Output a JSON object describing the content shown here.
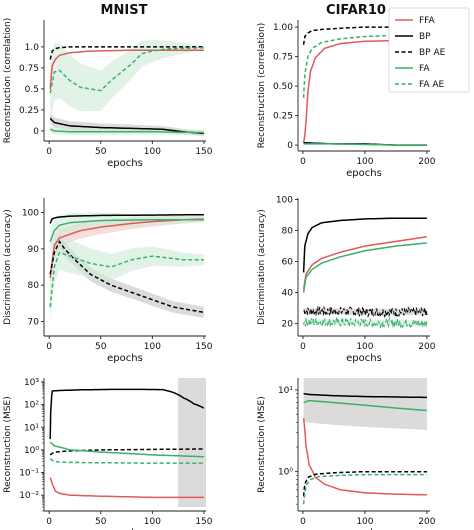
{
  "figure": {
    "col_titles": [
      "MNIST",
      "CIFAR10"
    ],
    "legend": [
      {
        "name": "FFA",
        "color": "#e05a5a",
        "dash": "solid"
      },
      {
        "name": "BP",
        "color": "#000000",
        "dash": "solid"
      },
      {
        "name": "BP AE",
        "color": "#000000",
        "dash": "dashed"
      },
      {
        "name": "FA",
        "color": "#3cb06a",
        "dash": "solid"
      },
      {
        "name": "FA AE",
        "color": "#3cb06a",
        "dash": "dashed"
      }
    ],
    "colors": {
      "FFA": "#e05a5a",
      "BP": "#000000",
      "FA": "#3cb06a",
      "band_gray": "#bdbdbd",
      "band_green": "#cdebd7",
      "band_red": "#f4c7c7"
    }
  },
  "chart_data": [
    {
      "type": "line",
      "panel": "mnist-correlation",
      "title": "MNIST",
      "xlabel": "epochs",
      "ylabel": "Reconstruction (correlation)",
      "xlim": [
        -5,
        152
      ],
      "ylim": [
        -0.12,
        1.32
      ],
      "yscale": "linear",
      "xticks": [
        0,
        50,
        100,
        150
      ],
      "yticks": [
        0,
        0.25,
        0.5,
        0.75,
        1.0
      ],
      "yticklabels": [
        "0",
        "0.25",
        "0.5",
        "0.75",
        "1.0"
      ],
      "series": [
        {
          "name": "FFA",
          "color": "#e05a5a",
          "dash": "solid",
          "x": [
            1,
            3,
            6,
            10,
            20,
            40,
            80,
            150
          ],
          "y": [
            0.5,
            0.78,
            0.85,
            0.9,
            0.93,
            0.95,
            0.96,
            0.96
          ]
        },
        {
          "name": "BP",
          "color": "#000000",
          "dash": "solid",
          "x": [
            1,
            5,
            20,
            50,
            80,
            110,
            130,
            150
          ],
          "y": [
            0.15,
            0.1,
            0.06,
            0.04,
            0.03,
            0.02,
            -0.01,
            -0.03
          ],
          "band": [
            0.06,
            0.03
          ]
        },
        {
          "name": "BP AE",
          "color": "#000000",
          "dash": "dashed",
          "x": [
            1,
            3,
            6,
            10,
            20,
            40,
            150
          ],
          "y": [
            0.85,
            0.95,
            0.98,
            0.99,
            1.0,
            1.0,
            1.0
          ]
        },
        {
          "name": "FA",
          "color": "#3cb06a",
          "dash": "solid",
          "x": [
            1,
            5,
            20,
            50,
            100,
            150
          ],
          "y": [
            0.02,
            0.0,
            -0.01,
            -0.01,
            -0.01,
            -0.02
          ],
          "band": [
            0.04,
            0.03
          ]
        },
        {
          "name": "FA AE",
          "color": "#3cb06a",
          "dash": "dashed",
          "x": [
            1,
            5,
            10,
            20,
            30,
            40,
            50,
            60,
            70,
            80,
            90,
            100,
            110,
            120,
            150
          ],
          "y": [
            0.45,
            0.7,
            0.72,
            0.6,
            0.52,
            0.5,
            0.48,
            0.6,
            0.7,
            0.8,
            0.92,
            0.95,
            0.97,
            0.98,
            0.99
          ],
          "band": [
            0.35,
            0.02
          ]
        }
      ]
    },
    {
      "type": "line",
      "panel": "cifar-correlation",
      "title": "CIFAR10",
      "xlabel": "epochs",
      "ylabel": "Reconstruction (correlation)",
      "xlim": [
        -8,
        205
      ],
      "ylim": [
        -0.05,
        1.06
      ],
      "yscale": "linear",
      "xticks": [
        0,
        100,
        200
      ],
      "yticks": [
        0,
        0.25,
        0.5,
        0.75,
        1.0
      ],
      "yticklabels": [
        "0",
        "0.25",
        "0.50",
        "0.75",
        "1.00"
      ],
      "series": [
        {
          "name": "FFA",
          "color": "#e05a5a",
          "dash": "solid",
          "x": [
            1,
            3,
            5,
            8,
            12,
            20,
            35,
            60,
            100,
            150,
            200
          ],
          "y": [
            0.02,
            0.08,
            0.2,
            0.45,
            0.62,
            0.74,
            0.82,
            0.86,
            0.88,
            0.885,
            0.89
          ]
        },
        {
          "name": "BP",
          "color": "#000000",
          "dash": "solid",
          "x": [
            1,
            50,
            100,
            150,
            200
          ],
          "y": [
            0.02,
            0.01,
            0.01,
            0.0,
            0.0
          ]
        },
        {
          "name": "BP AE",
          "color": "#000000",
          "dash": "dashed",
          "x": [
            1,
            3,
            8,
            15,
            30,
            60,
            100,
            200
          ],
          "y": [
            0.85,
            0.92,
            0.95,
            0.97,
            0.98,
            0.99,
            1.0,
            1.0
          ]
        },
        {
          "name": "FA",
          "color": "#3cb06a",
          "dash": "solid",
          "x": [
            1,
            50,
            100,
            150,
            200
          ],
          "y": [
            0.01,
            0.01,
            0.005,
            0.0,
            0.0
          ]
        },
        {
          "name": "FA AE",
          "color": "#3cb06a",
          "dash": "dashed",
          "x": [
            1,
            3,
            8,
            15,
            30,
            60,
            100,
            150,
            200
          ],
          "y": [
            0.4,
            0.6,
            0.75,
            0.82,
            0.87,
            0.9,
            0.92,
            0.93,
            0.93
          ]
        }
      ]
    },
    {
      "type": "line",
      "panel": "mnist-accuracy",
      "xlabel": "epochs",
      "ylabel": "Discrimination (accuracy)",
      "xlim": [
        -5,
        152
      ],
      "ylim": [
        66,
        104
      ],
      "yscale": "linear",
      "xticks": [
        0,
        50,
        100,
        150
      ],
      "yticks": [
        70,
        80,
        90,
        100
      ],
      "yticklabels": [
        "70",
        "80",
        "90",
        "100"
      ],
      "series": [
        {
          "name": "FFA",
          "color": "#e05a5a",
          "dash": "solid",
          "x": [
            1,
            5,
            10,
            20,
            30,
            50,
            80,
            100,
            130,
            150
          ],
          "y": [
            82,
            91,
            93,
            94,
            95,
            96,
            97,
            97.5,
            98,
            98.2
          ],
          "band": [
            2.5,
            0.8
          ]
        },
        {
          "name": "BP",
          "color": "#000000",
          "dash": "solid",
          "x": [
            1,
            3,
            8,
            20,
            50,
            100,
            150
          ],
          "y": [
            97,
            98.3,
            98.7,
            99,
            99.2,
            99.3,
            99.4
          ]
        },
        {
          "name": "BP AE",
          "color": "#000000",
          "dash": "dashed",
          "x": [
            1,
            5,
            10,
            15,
            25,
            40,
            60,
            80,
            100,
            120,
            150
          ],
          "y": [
            83,
            89,
            92,
            90,
            87,
            83,
            80,
            78,
            76,
            74,
            72.5
          ],
          "band": [
            2,
            1.5
          ]
        },
        {
          "name": "FA",
          "color": "#3cb06a",
          "dash": "solid",
          "x": [
            1,
            5,
            10,
            20,
            50,
            100,
            150
          ],
          "y": [
            92,
            95,
            96.5,
            97.2,
            97.8,
            98,
            98
          ],
          "band": [
            3,
            0.6
          ]
        },
        {
          "name": "FA AE",
          "color": "#3cb06a",
          "dash": "dashed",
          "x": [
            1,
            5,
            10,
            20,
            40,
            60,
            80,
            100,
            130,
            150
          ],
          "y": [
            74,
            85,
            89,
            88,
            86,
            85,
            87,
            88,
            87,
            87
          ],
          "band": [
            5,
            1.5
          ]
        }
      ]
    },
    {
      "type": "line",
      "panel": "cifar-accuracy",
      "xlabel": "epochs",
      "ylabel": "Discrimination (accuracy)",
      "xlim": [
        -8,
        205
      ],
      "ylim": [
        12,
        101
      ],
      "yscale": "linear",
      "xticks": [
        0,
        100,
        200
      ],
      "yticks": [
        20,
        40,
        60,
        80,
        100
      ],
      "yticklabels": [
        "20",
        "40",
        "60",
        "80",
        "100"
      ],
      "series": [
        {
          "name": "FFA",
          "color": "#e05a5a",
          "dash": "solid",
          "x": [
            1,
            5,
            15,
            30,
            60,
            100,
            150,
            200
          ],
          "y": [
            42,
            52,
            58,
            62,
            66,
            70,
            73,
            76
          ]
        },
        {
          "name": "BP",
          "color": "#000000",
          "dash": "solid",
          "x": [
            1,
            3,
            8,
            15,
            30,
            60,
            100,
            150,
            200
          ],
          "y": [
            53,
            70,
            78,
            82,
            85,
            86.5,
            87.5,
            88,
            88
          ]
        },
        {
          "name": "BP AE",
          "color": "#000000",
          "dash": "dashed",
          "x": [
            1,
            50,
            100,
            150,
            200
          ],
          "y": [
            28,
            28,
            27.5,
            27.5,
            27.5
          ],
          "noise": 3,
          "band": [
            2,
            2
          ]
        },
        {
          "name": "FA",
          "color": "#3cb06a",
          "dash": "solid",
          "x": [
            1,
            5,
            15,
            30,
            60,
            100,
            150,
            200
          ],
          "y": [
            40,
            50,
            55,
            59,
            63,
            67,
            70,
            72
          ]
        },
        {
          "name": "FA AE",
          "color": "#3cb06a",
          "dash": "dashed",
          "x": [
            1,
            50,
            100,
            150,
            200
          ],
          "y": [
            21,
            21,
            20.5,
            20.5,
            20
          ],
          "noise": 3,
          "band": [
            2,
            2
          ]
        }
      ]
    },
    {
      "type": "line",
      "panel": "mnist-mse",
      "xlabel": "epochs",
      "ylabel": "Reconstruction (MSE)",
      "xlim": [
        -5,
        152
      ],
      "ylim": [
        0.002,
        1500
      ],
      "yscale": "log",
      "xticks": [
        0,
        50,
        100,
        150
      ],
      "yticks": [
        0.01,
        0.1,
        1,
        10,
        100,
        1000
      ],
      "yticklabels": [
        "10⁻²",
        "10⁻¹",
        "10⁰",
        "10¹",
        "10²",
        "10³"
      ],
      "series": [
        {
          "name": "FFA",
          "color": "#e05a5a",
          "dash": "solid",
          "x": [
            1,
            3,
            6,
            10,
            20,
            50,
            100,
            150
          ],
          "y": [
            0.06,
            0.03,
            0.015,
            0.012,
            0.01,
            0.009,
            0.008,
            0.008
          ]
        },
        {
          "name": "BP",
          "color": "#000000",
          "dash": "solid",
          "x": [
            1,
            2,
            3,
            10,
            30,
            60,
            90,
            110,
            120,
            130,
            140,
            150
          ],
          "y": [
            3,
            100,
            400,
            420,
            450,
            470,
            470,
            460,
            350,
            200,
            110,
            70
          ],
          "band_log": [
            {
              "from": 125,
              "lo": 0.003,
              "hi": 1500
            }
          ]
        },
        {
          "name": "BP AE",
          "color": "#000000",
          "dash": "dashed",
          "x": [
            1,
            5,
            20,
            50,
            100,
            150
          ],
          "y": [
            0.6,
            0.8,
            0.9,
            1.0,
            1.05,
            1.1
          ]
        },
        {
          "name": "FA",
          "color": "#3cb06a",
          "dash": "solid",
          "x": [
            1,
            5,
            20,
            50,
            100,
            150
          ],
          "y": [
            2.2,
            1.5,
            1.0,
            0.8,
            0.6,
            0.5
          ]
        },
        {
          "name": "FA AE",
          "color": "#3cb06a",
          "dash": "dashed",
          "x": [
            1,
            5,
            20,
            50,
            100,
            150
          ],
          "y": [
            0.4,
            0.3,
            0.28,
            0.27,
            0.26,
            0.26
          ]
        }
      ]
    },
    {
      "type": "line",
      "panel": "cifar-mse",
      "xlabel": "epochs",
      "ylabel": "Reconstruction (MSE)",
      "xlim": [
        -8,
        205
      ],
      "ylim": [
        0.33,
        14
      ],
      "yscale": "log",
      "xticks": [
        0,
        100,
        200
      ],
      "yticks": [
        1,
        10
      ],
      "yticklabels": [
        "10⁰",
        "10¹"
      ],
      "series": [
        {
          "name": "FFA",
          "color": "#e05a5a",
          "dash": "solid",
          "x": [
            1,
            5,
            10,
            20,
            35,
            60,
            100,
            150,
            200
          ],
          "y": [
            4.5,
            2.0,
            1.2,
            0.85,
            0.7,
            0.6,
            0.55,
            0.53,
            0.52
          ]
        },
        {
          "name": "BP",
          "color": "#000000",
          "dash": "solid",
          "x": [
            1,
            10,
            50,
            100,
            150,
            200
          ],
          "y": [
            9,
            8.8,
            8.5,
            8.3,
            8.2,
            8.1
          ],
          "band": [
            1.2,
            1.5
          ]
        },
        {
          "name": "BP AE",
          "color": "#000000",
          "dash": "dashed",
          "x": [
            1,
            3,
            8,
            20,
            50,
            100,
            200
          ],
          "y": [
            0.5,
            0.7,
            0.85,
            0.93,
            0.97,
            1.0,
            1.0
          ]
        },
        {
          "name": "FA",
          "color": "#3cb06a",
          "dash": "solid",
          "x": [
            1,
            10,
            50,
            100,
            150,
            200
          ],
          "y": [
            7.0,
            7.4,
            7.0,
            6.5,
            6.0,
            5.6
          ]
        },
        {
          "name": "FA AE",
          "color": "#3cb06a",
          "dash": "dashed",
          "x": [
            1,
            3,
            6,
            12,
            25,
            60,
            100,
            200
          ],
          "y": [
            0.4,
            0.55,
            0.7,
            0.8,
            0.87,
            0.9,
            0.92,
            0.92
          ]
        }
      ]
    }
  ]
}
